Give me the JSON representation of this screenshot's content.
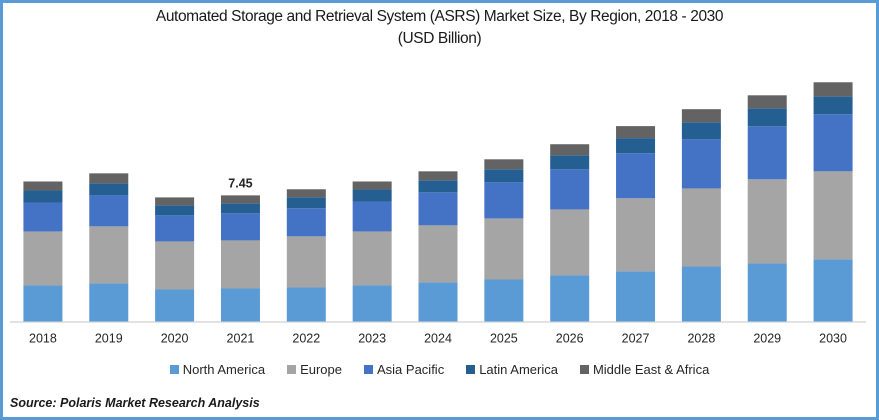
{
  "chart_data": {
    "type": "bar",
    "stacked": true,
    "title": "Automated Storage and Retrieval System (ASRS) Market Size, By Region, 2018 - 2030",
    "subtitle": "(USD Billion)",
    "xlabel": "",
    "ylabel": "",
    "ylim": [
      0,
      14.5
    ],
    "grid": false,
    "y_axis_visible": false,
    "legend_position": "bottom",
    "categories": [
      "2018",
      "2019",
      "2020",
      "2021",
      "2022",
      "2023",
      "2024",
      "2025",
      "2026",
      "2027",
      "2028",
      "2029",
      "2030"
    ],
    "series": [
      {
        "name": "North America",
        "color": "#5B9BD5",
        "values": [
          2.13,
          2.25,
          1.89,
          1.95,
          2.01,
          2.13,
          2.31,
          2.48,
          2.72,
          2.96,
          3.25,
          3.43,
          3.67
        ]
      },
      {
        "name": "Europe",
        "color": "#A5A5A5",
        "values": [
          3.19,
          3.37,
          2.84,
          2.84,
          3.02,
          3.19,
          3.37,
          3.61,
          3.9,
          4.32,
          4.61,
          4.97,
          5.2
        ]
      },
      {
        "name": "Asia Pacific",
        "color": "#4472C4",
        "values": [
          1.71,
          1.83,
          1.54,
          1.6,
          1.66,
          1.77,
          1.95,
          2.13,
          2.37,
          2.66,
          2.9,
          3.13,
          3.37
        ]
      },
      {
        "name": "Latin America",
        "color": "#255E91",
        "values": [
          0.71,
          0.71,
          0.59,
          0.59,
          0.65,
          0.71,
          0.71,
          0.77,
          0.83,
          0.89,
          1.01,
          1.06,
          1.06
        ]
      },
      {
        "name": "Middle East & Africa",
        "color": "#636363",
        "values": [
          0.53,
          0.59,
          0.47,
          0.47,
          0.47,
          0.47,
          0.53,
          0.59,
          0.65,
          0.71,
          0.77,
          0.77,
          0.83
        ]
      }
    ],
    "data_labels": [
      {
        "category": "2021",
        "text": "7.45"
      }
    ]
  },
  "source": "Source: Polaris  Market Research Analysis"
}
